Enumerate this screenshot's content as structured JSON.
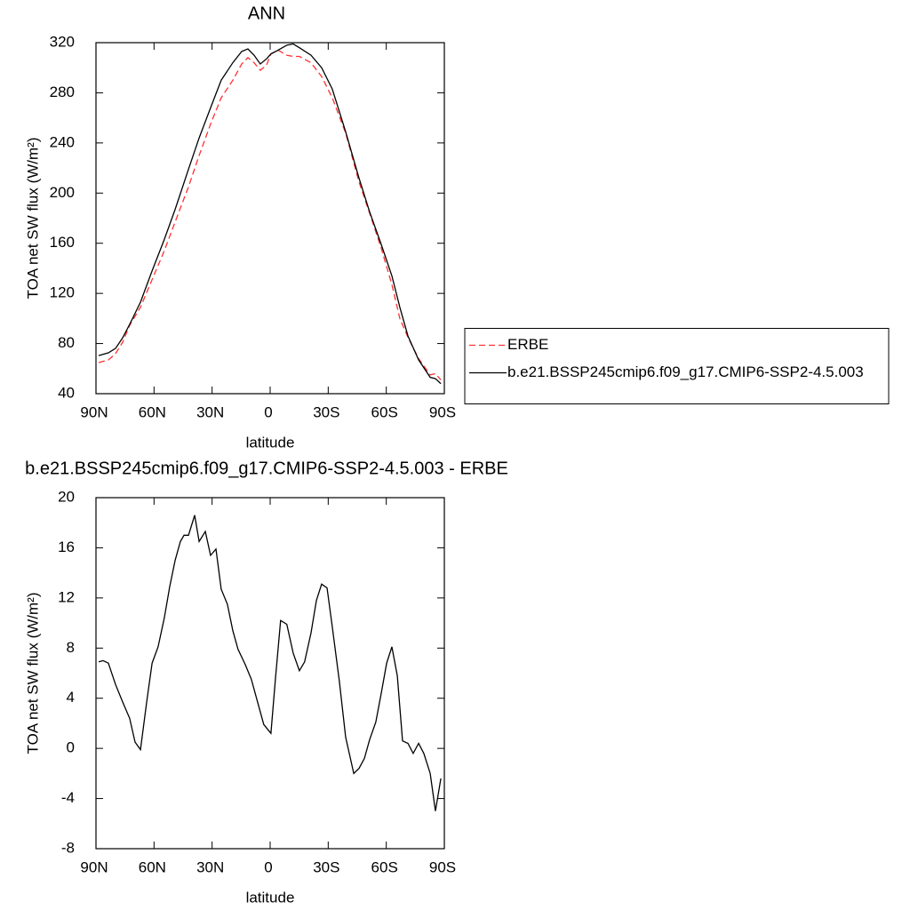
{
  "chart_data": [
    {
      "type": "line",
      "title": "ANN",
      "x_label": "latitude",
      "y_label": "TOA net SW flux (W/m²)",
      "xlim": [
        90,
        -90
      ],
      "ylim": [
        40,
        320
      ],
      "xticks": [
        {
          "value": 90,
          "label": "90N"
        },
        {
          "value": 60,
          "label": "60N"
        },
        {
          "value": 30,
          "label": "30N"
        },
        0,
        {
          "value": -30,
          "label": "30S"
        },
        {
          "value": -60,
          "label": "60S"
        },
        {
          "value": -90,
          "label": "90S"
        }
      ],
      "yticks": [
        40,
        80,
        120,
        160,
        200,
        240,
        280,
        320
      ],
      "legend": "right",
      "x": [
        88.6,
        83.6,
        79.9,
        76.2,
        72.6,
        67.0,
        61.0,
        54.7,
        49.1,
        42.2,
        36.7,
        30.8,
        25.3,
        19.3,
        14.7,
        11.5,
        8.3,
        5.1,
        1.9,
        -0.4,
        -4.1,
        -8.6,
        -11.9,
        -15.1,
        -21.1,
        -26.6,
        -32.1,
        -39.0,
        -45.9,
        -51.4,
        -57.4,
        -62.9,
        -67.0,
        -71.2,
        -76.7,
        -82.7,
        -85.4,
        -88.2
      ],
      "series": [
        {
          "name": "ERBE",
          "color": "#ff3030",
          "dash": true,
          "values": [
            64.8,
            66.9,
            71.9,
            81.1,
            94.5,
            109,
            131,
            154,
            177,
            205,
            230,
            255,
            276,
            290,
            303,
            308,
            304,
            298,
            302,
            311,
            314,
            310,
            309,
            309,
            304,
            293,
            276,
            248,
            209,
            184,
            156,
            127,
            100,
            85,
            68,
            55,
            56,
            51
          ]
        },
        {
          "name": "b.e21.BSSP245cmip6.f09_g17.CMIP6-SSP2-4.5.003",
          "color": "#000000",
          "dash": false,
          "values": [
            70.4,
            72.6,
            76.1,
            84.6,
            95.3,
            113,
            138,
            163,
            187,
            219,
            244,
            268,
            290,
            304,
            313,
            315,
            310,
            303,
            307,
            311,
            314,
            318,
            319,
            316,
            310,
            300,
            283,
            249,
            212,
            185,
            159,
            134,
            109,
            86,
            67,
            53,
            52,
            48
          ]
        }
      ]
    },
    {
      "type": "line",
      "title": "b.e21.BSSP245cmip6.f09_g17.CMIP6-SSP2-4.5.003 - ERBE",
      "x_label": "latitude",
      "y_label": "TOA net SW flux (W/m²)",
      "xlim": [
        90,
        -90
      ],
      "ylim": [
        -8,
        20
      ],
      "xticks": [
        {
          "value": 90,
          "label": "90N"
        },
        {
          "value": 60,
          "label": "60N"
        },
        {
          "value": 30,
          "label": "30N"
        },
        0,
        {
          "value": -30,
          "label": "30S"
        },
        {
          "value": -60,
          "label": "60S"
        },
        {
          "value": -90,
          "label": "90S"
        }
      ],
      "yticks": [
        -8,
        -4,
        0,
        4,
        8,
        12,
        16,
        20
      ],
      "x": [
        88.6,
        86.3,
        83.6,
        79.9,
        76.2,
        72.6,
        69.8,
        67.0,
        63.8,
        61.0,
        57.9,
        54.7,
        51.9,
        49.1,
        46.4,
        44.5,
        42.2,
        39.0,
        36.7,
        33.5,
        30.8,
        28.0,
        25.3,
        22.1,
        19.3,
        16.6,
        12.9,
        9.7,
        6.5,
        3.3,
        -0.4,
        -2.7,
        -5.4,
        -8.6,
        -11.9,
        -15.1,
        -17.8,
        -21.1,
        -23.9,
        -26.6,
        -29.4,
        -32.1,
        -35.8,
        -39.0,
        -43.2,
        -45.9,
        -48.7,
        -51.4,
        -54.6,
        -57.4,
        -60.2,
        -62.9,
        -65.7,
        -68.4,
        -71.2,
        -73.9,
        -76.7,
        -79.4,
        -82.7,
        -85.4,
        -88.2
      ],
      "series": [
        {
          "color": "#000000",
          "dash": false,
          "values": [
            6.9,
            7.0,
            6.8,
            5.1,
            3.7,
            2.4,
            0.5,
            -0.1,
            3.7,
            6.8,
            8.1,
            10.4,
            12.9,
            15.0,
            16.5,
            17.0,
            17.0,
            18.6,
            16.5,
            17.3,
            15.4,
            15.9,
            12.7,
            11.5,
            9.4,
            7.9,
            6.7,
            5.5,
            3.7,
            1.9,
            1.2,
            5.5,
            10.2,
            9.9,
            7.6,
            6.2,
            6.9,
            9.2,
            11.8,
            13.1,
            12.8,
            9.7,
            5.3,
            0.9,
            -2.0,
            -1.6,
            -0.8,
            0.7,
            2.1,
            4.4,
            6.8,
            8.1,
            5.8,
            0.6,
            0.4,
            -0.4,
            0.4,
            -0.4,
            -2.0,
            -5.0,
            -2.4
          ]
        }
      ]
    }
  ]
}
